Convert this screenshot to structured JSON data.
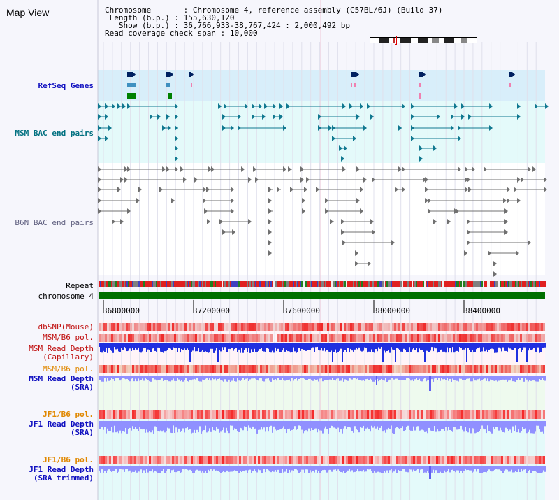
{
  "title": "Map View",
  "info": {
    "chromosome_key": "Chromosome",
    "chromosome_val": "Chromosome 4, reference assembly (C57BL/6J) (Build 37)",
    "length_key": "Length (b.p.)",
    "length_val": "155,630,120",
    "show_key": "Show (b.p.)",
    "show_val": "36,766,933-38,767,424 : 2,000,492 bp",
    "coverage_key": "Read coverage check span",
    "coverage_val": "10,000"
  },
  "tracks": {
    "refseq": "RefSeq Genes",
    "msm_bac": "MSM BAC end pairs",
    "b6n_bac": "B6N BAC end pairs",
    "repeat": "Repeat",
    "chromosome": "chromosome 4",
    "dbsnp": "dbSNP(Mouse)",
    "msm_b6_pol_1": "MSM/B6 pol.",
    "msm_read_depth_cap_1": "MSM Read Depth",
    "msm_read_depth_cap_2": "(Capillary)",
    "msm_b6_pol_2": "MSM/B6 pol.",
    "msm_read_depth_sra_1": "MSM Read Depth",
    "msm_read_depth_sra_2": "(SRA)",
    "jf1_b6_pol_1": "JF1/B6 pol.",
    "jf1_read_depth_sra_1": "JF1 Read Depth",
    "jf1_read_depth_sra_2": "(SRA)",
    "jf1_b6_pol_2": "JF1/B6 pol.",
    "jf1_read_depth_trim_1": "JF1 Read Depth",
    "jf1_read_depth_trim_2": "(SRA trimmed)"
  },
  "axis_ticks": [
    "36800000",
    "37200000",
    "37600000",
    "38000000",
    "38400000"
  ],
  "colors": {
    "refseq_label": "#1010c0",
    "msm_label": "#007080",
    "b6n_label": "#606080",
    "pol_msm_label": "#c01010",
    "orange_label": "#e08800",
    "blue_label": "#1010c0",
    "chromosome_bar": "#007000"
  }
}
